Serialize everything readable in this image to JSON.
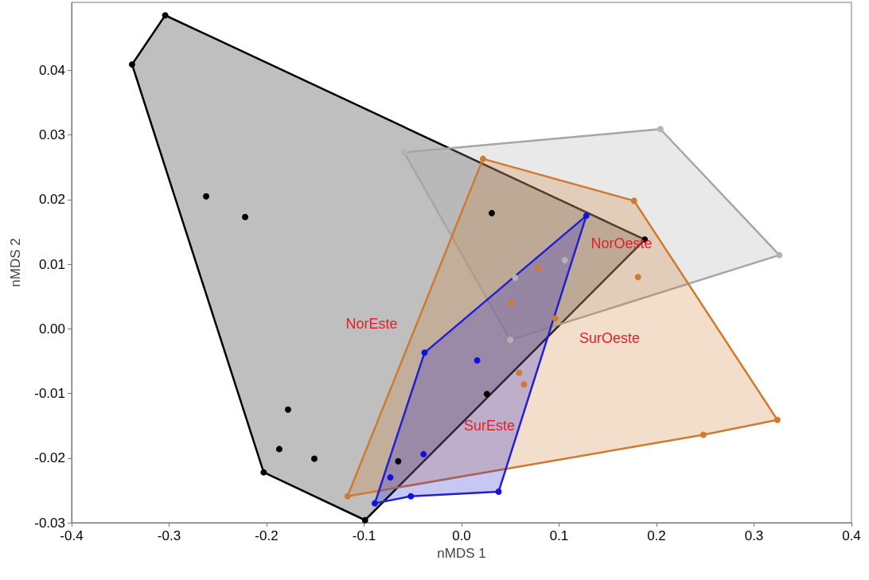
{
  "chart_data": {
    "type": "scatter",
    "xlabel": "nMDS 1",
    "ylabel": "nMDS 2",
    "xlim": [
      -0.4,
      0.4
    ],
    "ylim": [
      -0.03,
      0.0505
    ],
    "xticks": [
      {
        "value": -0.4,
        "label": "-0.4"
      },
      {
        "value": -0.3,
        "label": "-0.3"
      },
      {
        "value": -0.2,
        "label": "-0.2"
      },
      {
        "value": -0.1,
        "label": "-0.1"
      },
      {
        "value": 0,
        "label": "0.0"
      },
      {
        "value": 0.1,
        "label": "0.1"
      },
      {
        "value": 0.2,
        "label": "0.2"
      },
      {
        "value": 0.3,
        "label": "0.3"
      },
      {
        "value": 0.4,
        "label": "0.4"
      }
    ],
    "yticks": [
      {
        "value": -0.03,
        "label": "-0.03"
      },
      {
        "value": -0.02,
        "label": "-0.02"
      },
      {
        "value": -0.01,
        "label": "-0.01"
      },
      {
        "value": 0,
        "label": "0.00"
      },
      {
        "value": 0.01,
        "label": "0.01"
      },
      {
        "value": 0.02,
        "label": "0.02"
      },
      {
        "value": 0.03,
        "label": "0.03"
      },
      {
        "value": 0.04,
        "label": "0.04"
      }
    ],
    "grid": false,
    "marker": "circle",
    "series": [
      {
        "type": "area",
        "marker": "none",
        "color": "#000000",
        "x": [
          -0.304,
          0.188,
          -0.099,
          -0.203,
          -0.338
        ],
        "values": [
          0.0485,
          0.0138,
          -0.0296,
          -0.0222,
          0.0409
        ]
      },
      {
        "type": "area",
        "marker": "none",
        "color": "#a6a6a6",
        "x": [
          -0.059,
          0.204,
          0.326,
          0.05
        ],
        "values": [
          0.0273,
          0.0309,
          0.0114,
          -0.0017
        ]
      },
      {
        "type": "area",
        "marker": "none",
        "color": "#d07a30",
        "x": [
          0.022,
          0.177,
          0.324,
          0.248,
          -0.117
        ],
        "values": [
          0.0263,
          0.0198,
          -0.0141,
          -0.0164,
          -0.0259
        ]
      },
      {
        "type": "area",
        "marker": "none",
        "color": "#2020d0",
        "x": [
          0.128,
          0.038,
          -0.052,
          -0.089,
          -0.038
        ],
        "values": [
          0.0175,
          -0.0252,
          -0.0259,
          -0.027,
          -0.0037
        ]
      },
      {
        "color": "#000000",
        "x": [
          -0.304,
          -0.338,
          -0.262,
          -0.222,
          -0.178,
          -0.187,
          -0.151,
          -0.203,
          -0.099,
          -0.065,
          0.026,
          0.031,
          0.188
        ],
        "values": [
          0.0485,
          0.0409,
          0.0205,
          0.0173,
          -0.0125,
          -0.0186,
          -0.0201,
          -0.0222,
          -0.0296,
          -0.0205,
          -0.0101,
          0.0179,
          0.0138
        ]
      },
      {
        "color": "#b3b3b3",
        "x": [
          -0.059,
          0.204,
          0.326,
          0.05,
          0.106,
          0.055
        ],
        "values": [
          0.0273,
          0.0309,
          0.0114,
          -0.0017,
          0.0106,
          0.0079
        ]
      },
      {
        "color": "#d07a30",
        "x": [
          0.022,
          0.177,
          0.324,
          0.248,
          -0.117,
          0.079,
          0.181,
          0.051,
          0.096,
          0.059,
          0.064
        ],
        "values": [
          0.0263,
          0.0198,
          -0.0141,
          -0.0164,
          -0.0259,
          0.0094,
          0.008,
          0.004,
          0.0016,
          -0.0068,
          -0.0086
        ]
      },
      {
        "color": "#1010e0",
        "x": [
          0.128,
          -0.038,
          0.016,
          -0.039,
          -0.073,
          -0.089,
          -0.052,
          0.038
        ],
        "values": [
          0.0175,
          -0.0037,
          -0.0049,
          -0.0194,
          -0.023,
          -0.027,
          -0.0259,
          -0.0252
        ]
      }
    ],
    "annotations": [
      "NorEste",
      "NorOeste",
      "SurOeste",
      "SurEste"
    ]
  }
}
